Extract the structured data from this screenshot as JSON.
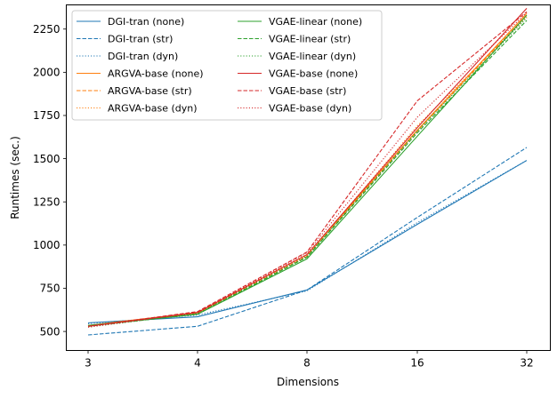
{
  "chart_data": {
    "type": "line",
    "xlabel": "Dimensions",
    "ylabel": "Runtimes (sec.)",
    "categories": [
      "3",
      "4",
      "8",
      "16",
      "32"
    ],
    "ylim": [
      390,
      2390
    ],
    "yticks": [
      500,
      750,
      1000,
      1250,
      1500,
      1750,
      2000,
      2250
    ],
    "ytick_labels": [
      "500",
      "750",
      "1000",
      "1250",
      "1500",
      "1750",
      "2000",
      "2250"
    ],
    "grid": false,
    "legend_position": "upper-left",
    "series": [
      {
        "name": "DGI-tran (none)",
        "color": "#1f77b4",
        "style": "solid",
        "values": [
          550,
          585,
          740,
          1120,
          1490
        ]
      },
      {
        "name": "DGI-tran (str)",
        "color": "#1f77b4",
        "style": "dashed",
        "values": [
          480,
          530,
          740,
          1160,
          1565
        ]
      },
      {
        "name": "DGI-tran (dyn)",
        "color": "#1f77b4",
        "style": "dotted",
        "values": [
          545,
          595,
          735,
          1130,
          1490
        ]
      },
      {
        "name": "ARGVA-base (none)",
        "color": "#ff7f0e",
        "style": "solid",
        "values": [
          535,
          610,
          945,
          1665,
          2340
        ]
      },
      {
        "name": "ARGVA-base (str)",
        "color": "#ff7f0e",
        "style": "dashed",
        "values": [
          530,
          605,
          935,
          1660,
          2330
        ]
      },
      {
        "name": "ARGVA-base (dyn)",
        "color": "#ff7f0e",
        "style": "dotted",
        "values": [
          530,
          605,
          940,
          1690,
          2320
        ]
      },
      {
        "name": "VGAE-linear (none)",
        "color": "#2ca02c",
        "style": "solid",
        "values": [
          535,
          600,
          920,
          1630,
          2330
        ]
      },
      {
        "name": "VGAE-linear (str)",
        "color": "#2ca02c",
        "style": "dashed",
        "values": [
          530,
          600,
          930,
          1650,
          2300
        ]
      },
      {
        "name": "VGAE-linear (dyn)",
        "color": "#2ca02c",
        "style": "dotted",
        "values": [
          525,
          605,
          935,
          1660,
          2315
        ]
      },
      {
        "name": "VGAE-base (none)",
        "color": "#d62728",
        "style": "solid",
        "values": [
          530,
          610,
          945,
          1680,
          2370
        ]
      },
      {
        "name": "VGAE-base (str)",
        "color": "#d62728",
        "style": "dashed",
        "values": [
          530,
          615,
          960,
          1835,
          2350
        ]
      },
      {
        "name": "VGAE-base (dyn)",
        "color": "#d62728",
        "style": "dotted",
        "values": [
          525,
          610,
          955,
          1740,
          2345
        ]
      }
    ]
  }
}
